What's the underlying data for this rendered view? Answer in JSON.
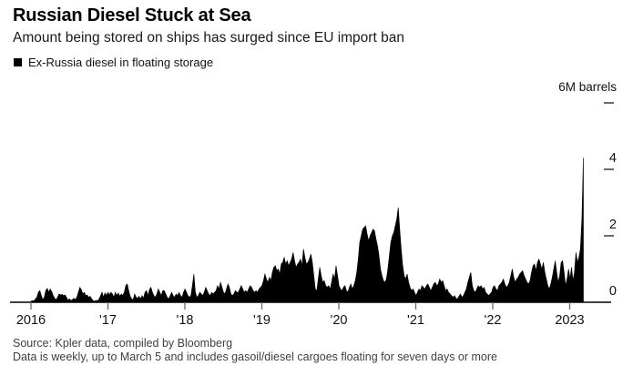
{
  "header": {
    "title": "Russian Diesel Stuck at Sea",
    "subtitle": "Amount being stored on ships has surged since EU import ban"
  },
  "legend": {
    "label": "Ex-Russia diesel in floating storage",
    "swatch_color": "#000000"
  },
  "unit_label": "6M barrels",
  "footer": {
    "source_line": "Source: Kpler data, compiled by Bloomberg",
    "note_line": "Data is weekly, up to March 5 and includes gasoil/diesel cargoes floating for seven days or more"
  },
  "colors": {
    "series_fill": "#000000",
    "axis_line": "#000000",
    "tick": "#6b6b6b",
    "tick_label": "#111111",
    "muted_text": "#3f3f3f",
    "background": "#ffffff"
  },
  "chart_data": {
    "type": "area",
    "title": "Ex-Russia diesel in floating storage",
    "xlabel": "",
    "ylabel": "6M barrels",
    "unit": "million barrels",
    "frequency": "weekly",
    "x_range": [
      "2016-01-01",
      "2023-03-05"
    ],
    "x_tick_labels": [
      "2016",
      "'17",
      "'18",
      "'19",
      "'20",
      "'21",
      "'22",
      "2023"
    ],
    "ylim": [
      0,
      6
    ],
    "y_ticks": [
      0,
      2,
      4,
      6
    ],
    "y_tick_labels_shown": [
      "0",
      "2",
      "4"
    ],
    "legend_position": "top-left",
    "grid": false,
    "values": [
      0.03,
      0.05,
      0.04,
      0.1,
      0.15,
      0.3,
      0.35,
      0.2,
      0.08,
      0.15,
      0.35,
      0.42,
      0.3,
      0.4,
      0.32,
      0.2,
      0.12,
      0.08,
      0.15,
      0.25,
      0.22,
      0.24,
      0.2,
      0.22,
      0.15,
      0.06,
      0.1,
      0.05,
      0.08,
      0.12,
      0.08,
      0.15,
      0.3,
      0.45,
      0.38,
      0.25,
      0.3,
      0.2,
      0.22,
      0.15,
      0.18,
      0.1,
      0.05,
      0.03,
      0.06,
      0.04,
      0.1,
      0.2,
      0.3,
      0.15,
      0.28,
      0.2,
      0.3,
      0.22,
      0.3,
      0.25,
      0.15,
      0.3,
      0.2,
      0.28,
      0.18,
      0.25,
      0.2,
      0.3,
      0.5,
      0.55,
      0.35,
      0.18,
      0.1,
      0.08,
      0.25,
      0.15,
      0.12,
      0.18,
      0.1,
      0.2,
      0.12,
      0.3,
      0.35,
      0.2,
      0.38,
      0.45,
      0.3,
      0.2,
      0.15,
      0.25,
      0.4,
      0.3,
      0.2,
      0.35,
      0.35,
      0.25,
      0.15,
      0.1,
      0.2,
      0.3,
      0.2,
      0.15,
      0.25,
      0.2,
      0.3,
      0.2,
      0.15,
      0.3,
      0.4,
      0.3,
      0.2,
      0.15,
      0.2,
      0.5,
      0.85,
      0.3,
      0.15,
      0.2,
      0.3,
      0.25,
      0.2,
      0.3,
      0.45,
      0.35,
      0.25,
      0.2,
      0.3,
      0.25,
      0.3,
      0.35,
      0.5,
      0.4,
      0.6,
      0.45,
      0.3,
      0.25,
      0.4,
      0.55,
      0.45,
      0.25,
      0.2,
      0.25,
      0.35,
      0.3,
      0.3,
      0.4,
      0.5,
      0.4,
      0.3,
      0.35,
      0.3,
      0.4,
      0.5,
      0.45,
      0.35,
      0.3,
      0.35,
      0.3,
      0.4,
      0.45,
      0.5,
      0.65,
      0.85,
      0.7,
      0.6,
      0.75,
      0.65,
      0.9,
      1.05,
      1.1,
      0.95,
      1.0,
      0.85,
      1.15,
      1.2,
      1.35,
      1.15,
      1.25,
      1.1,
      1.2,
      1.3,
      1.5,
      1.25,
      1.05,
      1.15,
      1.2,
      1.3,
      1.1,
      1.6,
      1.35,
      1.15,
      1.2,
      1.3,
      1.45,
      1.2,
      0.8,
      0.4,
      0.35,
      0.7,
      1.05,
      0.8,
      0.6,
      0.65,
      0.5,
      0.45,
      0.5,
      0.4,
      0.6,
      0.85,
      0.7,
      1.1,
      0.8,
      0.5,
      0.4,
      0.35,
      0.45,
      0.5,
      0.35,
      0.3,
      0.45,
      0.55,
      0.4,
      0.5,
      0.65,
      0.9,
      1.3,
      1.8,
      2.0,
      2.2,
      2.25,
      2.3,
      2.05,
      1.85,
      2.0,
      2.1,
      2.2,
      2.15,
      1.9,
      1.7,
      1.4,
      1.0,
      0.8,
      0.65,
      0.6,
      0.7,
      1.0,
      1.4,
      1.8,
      2.0,
      2.1,
      2.3,
      2.5,
      2.85,
      2.2,
      1.6,
      1.1,
      0.8,
      0.7,
      0.85,
      0.6,
      0.45,
      0.35,
      0.4,
      0.3,
      0.2,
      0.3,
      0.4,
      0.35,
      0.5,
      0.45,
      0.4,
      0.5,
      0.55,
      0.45,
      0.35,
      0.45,
      0.55,
      0.6,
      0.5,
      0.55,
      0.7,
      0.6,
      0.65,
      0.5,
      0.35,
      0.4,
      0.3,
      0.25,
      0.2,
      0.15,
      0.2,
      0.12,
      0.1,
      0.18,
      0.25,
      0.15,
      0.2,
      0.3,
      0.4,
      0.6,
      0.75,
      0.9,
      0.5,
      0.35,
      0.3,
      0.4,
      0.5,
      0.45,
      0.5,
      0.4,
      0.45,
      0.3,
      0.25,
      0.2,
      0.25,
      0.3,
      0.45,
      0.5,
      0.4,
      0.35,
      0.5,
      0.55,
      0.6,
      0.7,
      0.55,
      0.45,
      0.5,
      0.6,
      0.8,
      1.0,
      0.75,
      0.6,
      0.7,
      0.75,
      0.85,
      0.9,
      0.95,
      0.8,
      0.7,
      0.6,
      0.55,
      0.65,
      0.9,
      1.1,
      1.15,
      0.95,
      1.2,
      1.3,
      1.15,
      1.0,
      1.2,
      0.9,
      0.7,
      0.5,
      0.4,
      0.55,
      0.75,
      1.0,
      1.25,
      0.9,
      0.6,
      0.8,
      1.2,
      1.25,
      0.9,
      0.5,
      0.7,
      1.0,
      0.7,
      1.05,
      0.65,
      0.9,
      1.5,
      1.2,
      1.35,
      1.6,
      2.5,
      4.35
    ]
  }
}
